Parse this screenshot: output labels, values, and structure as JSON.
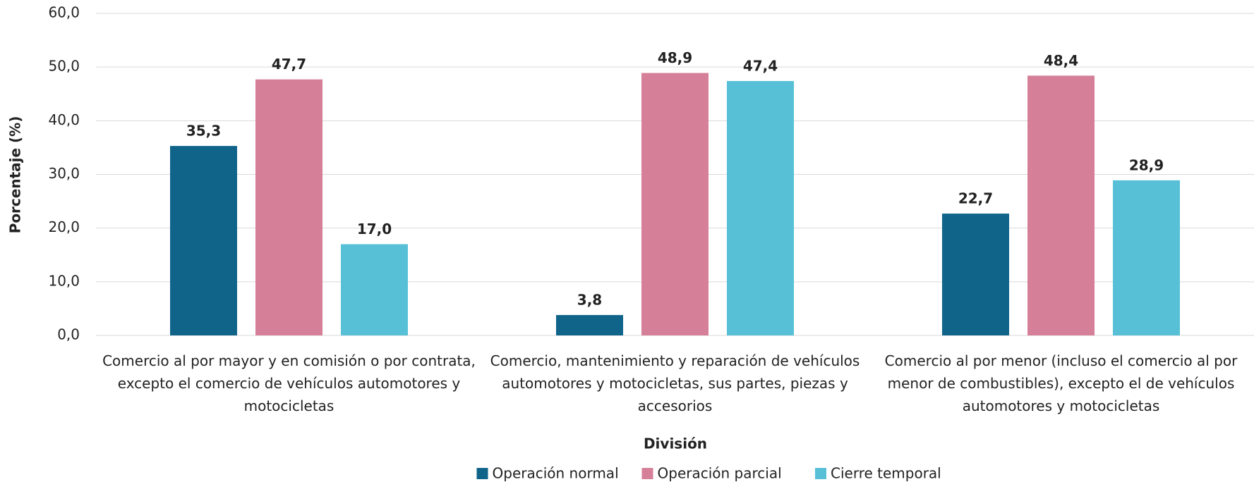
{
  "chart_data": {
    "type": "bar",
    "y_axis_label": "Porcentaje (%)",
    "x_axis_label": "División",
    "categories": [
      "Comercio al por mayor y en comisión o por contrata, excepto el comercio de vehículos automotores y motocicletas",
      "Comercio, mantenimiento y reparación de vehículos automotores y motocicletas, sus partes, piezas y accesorios",
      "Comercio al por menor (incluso el comercio al por menor de combustibles), excepto el de vehículos automotores y motocicletas"
    ],
    "series": [
      {
        "name": "Operación normal",
        "color": "#10648a",
        "values": [
          35.3,
          3.8,
          22.7
        ],
        "value_labels": [
          "35,3",
          "3,8",
          "22,7"
        ]
      },
      {
        "name": "Operación parcial",
        "color": "#d57f99",
        "values": [
          47.7,
          48.9,
          48.4
        ],
        "value_labels": [
          "47,7",
          "48,9",
          "48,4"
        ]
      },
      {
        "name": "Cierre temporal",
        "color": "#57c0d6",
        "values": [
          17.0,
          47.4,
          28.9
        ],
        "value_labels": [
          "17,0",
          "47,4",
          "28,9"
        ]
      }
    ],
    "ylim": [
      0,
      60
    ],
    "yticks": [
      {
        "value": 0,
        "label": "0,0"
      },
      {
        "value": 10,
        "label": "10,0"
      },
      {
        "value": 20,
        "label": "20,0"
      },
      {
        "value": 30,
        "label": "30,0"
      },
      {
        "value": 40,
        "label": "40,0"
      },
      {
        "value": 50,
        "label": "50,0"
      },
      {
        "value": 60,
        "label": "60,0"
      }
    ],
    "grid": true,
    "legend": "bottom"
  }
}
